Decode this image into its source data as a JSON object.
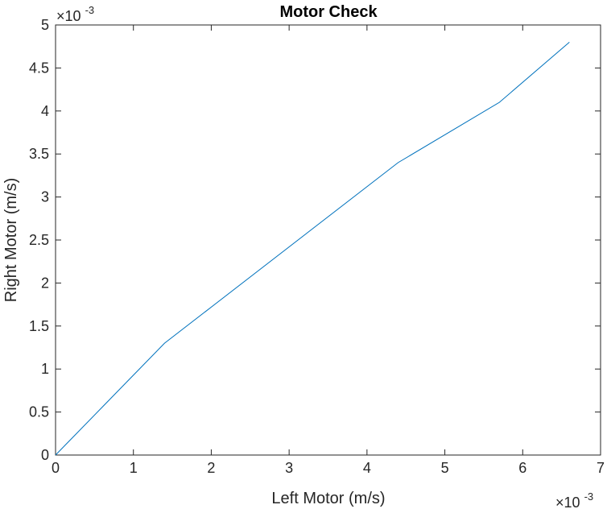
{
  "chart_data": {
    "type": "line",
    "title": "Motor Check",
    "xlabel": "Left Motor (m/s)",
    "ylabel": "Right Motor (m/s)",
    "x_multiplier": "×10",
    "x_exponent": "-3",
    "y_multiplier": "×10",
    "y_exponent": "-3",
    "xlim": [
      0,
      7
    ],
    "ylim": [
      0,
      5
    ],
    "x_ticks": [
      0,
      1,
      2,
      3,
      4,
      5,
      6,
      7
    ],
    "y_ticks": [
      0,
      0.5,
      1,
      1.5,
      2,
      2.5,
      3,
      3.5,
      4,
      4.5,
      5
    ],
    "x_tick_labels": [
      "0",
      "1",
      "2",
      "3",
      "4",
      "5",
      "6",
      "7"
    ],
    "y_tick_labels": [
      "0",
      "0.5",
      "1",
      "1.5",
      "2",
      "2.5",
      "3",
      "3.5",
      "4",
      "4.5",
      "5"
    ],
    "grid": false,
    "line_color": "#0072BD",
    "series": [
      {
        "x": [
          0,
          1.4,
          4.4,
          5.7,
          6.6
        ],
        "y": [
          0,
          1.3,
          3.4,
          4.1,
          4.8
        ]
      }
    ]
  }
}
